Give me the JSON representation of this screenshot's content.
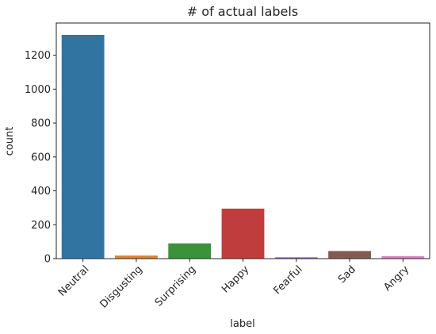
{
  "chart_data": {
    "type": "bar",
    "title": "# of actual labels",
    "xlabel": "label",
    "ylabel": "count",
    "categories": [
      "Neutral",
      "Disgusting",
      "Surprising",
      "Happy",
      "Fearful",
      "Sad",
      "Angry"
    ],
    "values": [
      1320,
      18,
      90,
      295,
      8,
      45,
      15
    ],
    "colors": [
      "#3274a1",
      "#e1812c",
      "#3a923a",
      "#c03d3e",
      "#9372b2",
      "#845b53",
      "#d684bd"
    ],
    "ylim": [
      0,
      1390
    ],
    "yticks": [
      0,
      200,
      400,
      600,
      800,
      1000,
      1200
    ],
    "grid": false,
    "legend": "none"
  }
}
